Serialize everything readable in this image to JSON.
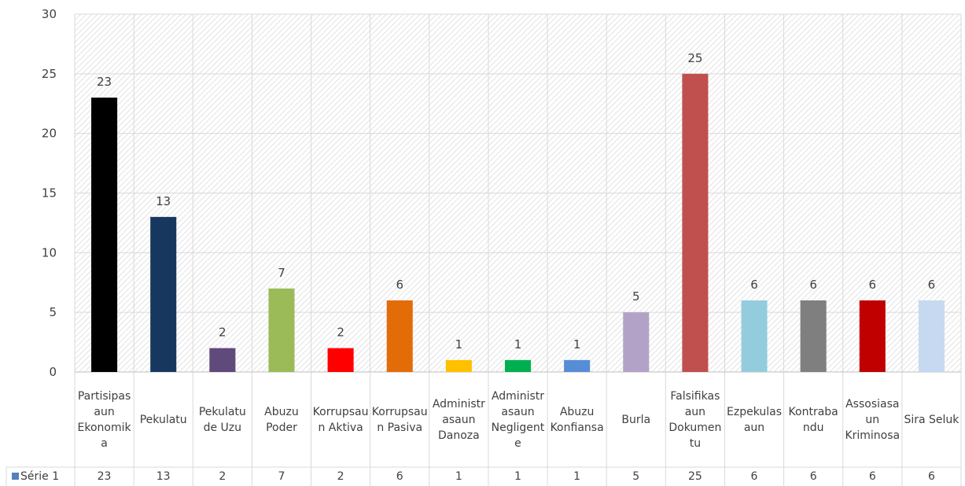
{
  "chart_data": {
    "type": "bar",
    "categories": [
      "Partisipasaun Ekonomika",
      "Pekulatu",
      "Pekulatu de Uzu",
      "Abuzu Poder",
      "Korrupsaun Aktiva",
      "Korrupsaun Pasiva",
      "Administrasaun Danoza",
      "Administrasaun Negligente",
      "Abuzu Konfiansa",
      "Burla",
      "Falsifikasaun Dokumentu",
      "Ezpekulasaun",
      "Kontrabandu",
      "Assosiasaun Kriminosa",
      "Sira Seluk"
    ],
    "series": [
      {
        "name": "Série 1",
        "color": "#4f81bd",
        "values": [
          23,
          13,
          2,
          7,
          2,
          6,
          1,
          1,
          1,
          5,
          25,
          6,
          6,
          6,
          6
        ],
        "colors": [
          "#000000",
          "#17375e",
          "#604a7b",
          "#9bbb59",
          "#ff0000",
          "#e36c09",
          "#ffc000",
          "#00b050",
          "#558ed5",
          "#b3a2c7",
          "#c0504d",
          "#93cddd",
          "#7f7f7f",
          "#c00000",
          "#c6d9f1"
        ]
      }
    ],
    "ylim": [
      0,
      30
    ],
    "yticks": [
      0,
      5,
      10,
      15,
      20,
      25,
      30
    ],
    "grid": true
  }
}
